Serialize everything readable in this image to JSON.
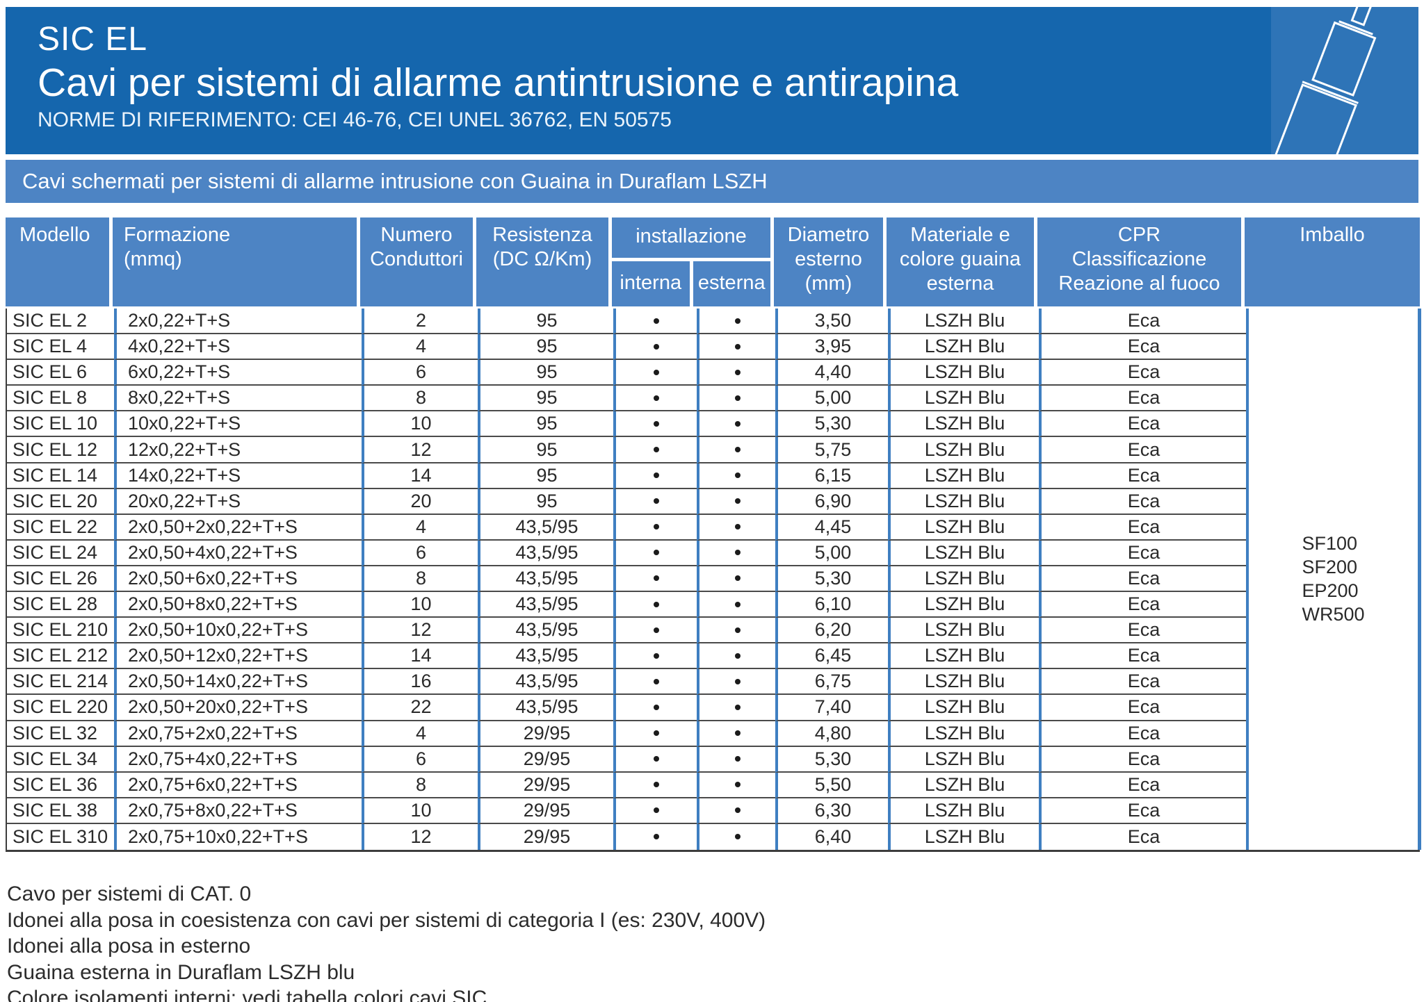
{
  "header": {
    "product": "SIC EL",
    "title": "Cavi per sistemi di allarme antintrusione e antirapina",
    "norms": "NORME DI RIFERIMENTO: CEI 46-76, CEI UNEL 36762, EN 50575"
  },
  "banner": {
    "text": "Cavi schermati per sistemi di allarme intrusione con Guaina in Duraflam LSZH"
  },
  "table": {
    "columns": {
      "modello": "Modello",
      "formazione": "Formazione\n(mmq)",
      "numero": "Numero\nConduttori",
      "resistenza": "Resistenza\n(DC Ω/Km)",
      "installazione": "installazione",
      "interna": "interna",
      "esterna": "esterna",
      "diametro": "Diametro\nesterno\n(mm)",
      "materiale": "Materiale e\ncolore guaina\nesterna",
      "cpr": "CPR\nClassificazione\nReazione al fuoco",
      "imballo": "Imballo"
    },
    "rows": [
      {
        "model": "SIC EL 2",
        "formation": "2x0,22+T+S",
        "conductors": "2",
        "resistance": "95",
        "interna": true,
        "esterna": true,
        "diameter": "3,50",
        "material": "LSZH Blu",
        "cpr": "Eca"
      },
      {
        "model": "SIC EL 4",
        "formation": "4x0,22+T+S",
        "conductors": "4",
        "resistance": "95",
        "interna": true,
        "esterna": true,
        "diameter": "3,95",
        "material": "LSZH Blu",
        "cpr": "Eca"
      },
      {
        "model": "SIC EL 6",
        "formation": "6x0,22+T+S",
        "conductors": "6",
        "resistance": "95",
        "interna": true,
        "esterna": true,
        "diameter": "4,40",
        "material": "LSZH Blu",
        "cpr": "Eca"
      },
      {
        "model": "SIC EL 8",
        "formation": "8x0,22+T+S",
        "conductors": "8",
        "resistance": "95",
        "interna": true,
        "esterna": true,
        "diameter": "5,00",
        "material": "LSZH Blu",
        "cpr": "Eca"
      },
      {
        "model": "SIC EL 10",
        "formation": "10x0,22+T+S",
        "conductors": "10",
        "resistance": "95",
        "interna": true,
        "esterna": true,
        "diameter": "5,30",
        "material": "LSZH Blu",
        "cpr": "Eca"
      },
      {
        "model": "SIC EL 12",
        "formation": "12x0,22+T+S",
        "conductors": "12",
        "resistance": "95",
        "interna": true,
        "esterna": true,
        "diameter": "5,75",
        "material": "LSZH Blu",
        "cpr": "Eca"
      },
      {
        "model": "SIC EL 14",
        "formation": "14x0,22+T+S",
        "conductors": "14",
        "resistance": "95",
        "interna": true,
        "esterna": true,
        "diameter": "6,15",
        "material": "LSZH Blu",
        "cpr": "Eca"
      },
      {
        "model": "SIC EL 20",
        "formation": "20x0,22+T+S",
        "conductors": "20",
        "resistance": "95",
        "interna": true,
        "esterna": true,
        "diameter": "6,90",
        "material": "LSZH Blu",
        "cpr": "Eca"
      },
      {
        "model": "SIC EL 22",
        "formation": "2x0,50+2x0,22+T+S",
        "conductors": "4",
        "resistance": "43,5/95",
        "interna": true,
        "esterna": true,
        "diameter": "4,45",
        "material": "LSZH Blu",
        "cpr": "Eca"
      },
      {
        "model": "SIC EL 24",
        "formation": "2x0,50+4x0,22+T+S",
        "conductors": "6",
        "resistance": "43,5/95",
        "interna": true,
        "esterna": true,
        "diameter": "5,00",
        "material": "LSZH Blu",
        "cpr": "Eca"
      },
      {
        "model": "SIC EL 26",
        "formation": "2x0,50+6x0,22+T+S",
        "conductors": "8",
        "resistance": "43,5/95",
        "interna": true,
        "esterna": true,
        "diameter": "5,30",
        "material": "LSZH Blu",
        "cpr": "Eca"
      },
      {
        "model": "SIC EL 28",
        "formation": "2x0,50+8x0,22+T+S",
        "conductors": "10",
        "resistance": "43,5/95",
        "interna": true,
        "esterna": true,
        "diameter": "6,10",
        "material": "LSZH Blu",
        "cpr": "Eca"
      },
      {
        "model": "SIC EL 210",
        "formation": "2x0,50+10x0,22+T+S",
        "conductors": "12",
        "resistance": "43,5/95",
        "interna": true,
        "esterna": true,
        "diameter": "6,20",
        "material": "LSZH Blu",
        "cpr": "Eca"
      },
      {
        "model": "SIC EL 212",
        "formation": "2x0,50+12x0,22+T+S",
        "conductors": "14",
        "resistance": "43,5/95",
        "interna": true,
        "esterna": true,
        "diameter": "6,45",
        "material": "LSZH Blu",
        "cpr": "Eca"
      },
      {
        "model": "SIC EL 214",
        "formation": "2x0,50+14x0,22+T+S",
        "conductors": "16",
        "resistance": "43,5/95",
        "interna": true,
        "esterna": true,
        "diameter": "6,75",
        "material": "LSZH Blu",
        "cpr": "Eca"
      },
      {
        "model": "SIC EL 220",
        "formation": "2x0,50+20x0,22+T+S",
        "conductors": "22",
        "resistance": "43,5/95",
        "interna": true,
        "esterna": true,
        "diameter": "7,40",
        "material": "LSZH Blu",
        "cpr": "Eca"
      },
      {
        "model": "SIC EL 32",
        "formation": "2x0,75+2x0,22+T+S",
        "conductors": "4",
        "resistance": "29/95",
        "interna": true,
        "esterna": true,
        "diameter": "4,80",
        "material": "LSZH Blu",
        "cpr": "Eca"
      },
      {
        "model": "SIC EL 34",
        "formation": "2x0,75+4x0,22+T+S",
        "conductors": "6",
        "resistance": "29/95",
        "interna": true,
        "esterna": true,
        "diameter": "5,30",
        "material": "LSZH Blu",
        "cpr": "Eca"
      },
      {
        "model": "SIC EL 36",
        "formation": "2x0,75+6x0,22+T+S",
        "conductors": "8",
        "resistance": "29/95",
        "interna": true,
        "esterna": true,
        "diameter": "5,50",
        "material": "LSZH Blu",
        "cpr": "Eca"
      },
      {
        "model": "SIC EL 38",
        "formation": "2x0,75+8x0,22+T+S",
        "conductors": "10",
        "resistance": "29/95",
        "interna": true,
        "esterna": true,
        "diameter": "6,30",
        "material": "LSZH Blu",
        "cpr": "Eca"
      },
      {
        "model": "SIC EL 310",
        "formation": "2x0,75+10x0,22+T+S",
        "conductors": "12",
        "resistance": "29/95",
        "interna": true,
        "esterna": true,
        "diameter": "6,40",
        "material": "LSZH Blu",
        "cpr": "Eca"
      }
    ],
    "imballo_values": [
      "SF100",
      "SF200",
      "EP200",
      "WR500"
    ]
  },
  "notes": [
    "Cavo per sistemi di CAT. 0",
    "Idonei alla posa in coesistenza con cavi per sistemi di categoria I (es: 230V, 400V)",
    "Idonei alla posa in esterno",
    "Guaina esterna in Duraflam LSZH blu",
    "Colore isolamenti interni: vedi tabella colori cavi SIC"
  ],
  "colors": {
    "dark_blue": "#1566ad",
    "panel_blue": "#2e74b7",
    "medium_blue": "#4d84c4",
    "grid_blue": "#3f7fc1"
  }
}
